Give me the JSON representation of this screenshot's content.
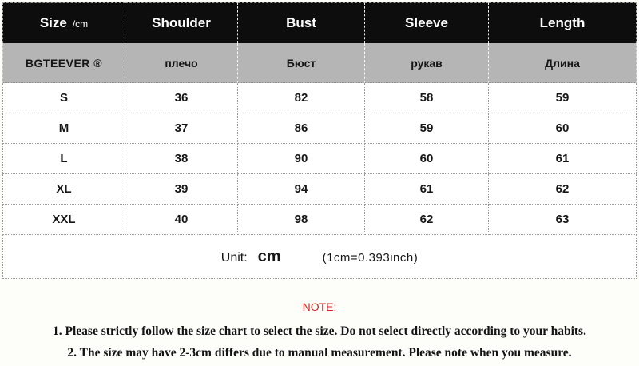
{
  "table": {
    "header": {
      "size_label": "Size",
      "size_unit": "/cm",
      "columns": [
        "Shoulder",
        "Bust",
        "Sleeve",
        "Length"
      ]
    },
    "subheader": {
      "brand": "BGTEEVER ®",
      "translations": [
        "плечо",
        "Бюст",
        "рукав",
        "Длина"
      ]
    },
    "rows": [
      [
        "S",
        "36",
        "82",
        "58",
        "59"
      ],
      [
        "M",
        "37",
        "86",
        "59",
        "60"
      ],
      [
        "L",
        "38",
        "90",
        "60",
        "61"
      ],
      [
        "XL",
        "39",
        "94",
        "61",
        "62"
      ],
      [
        "XXL",
        "40",
        "98",
        "62",
        "63"
      ]
    ],
    "unit": {
      "label": "Unit:",
      "value": "cm",
      "conversion": "(1cm=0.393inch)"
    }
  },
  "note": {
    "title": "NOTE:",
    "lines": [
      "1. Please strictly follow the size chart to select the size. Do not select directly according to your habits.",
      "2. The size may have 2-3cm differs due to manual measurement. Please note when you measure."
    ]
  },
  "colors": {
    "header_bg": "#0d0d0d",
    "subheader_bg": "#b5b5b5",
    "note_red": "#d91f1f"
  },
  "chart_data": {
    "type": "table",
    "title": "Size /cm",
    "unit": "cm",
    "conversion": "1cm=0.393inch",
    "columns": [
      "Size",
      "Shoulder (плечо)",
      "Bust (Бюст)",
      "Sleeve (рукав)",
      "Length (Длина)"
    ],
    "rows": [
      [
        "S",
        36,
        82,
        58,
        59
      ],
      [
        "M",
        37,
        86,
        59,
        60
      ],
      [
        "L",
        38,
        90,
        60,
        61
      ],
      [
        "XL",
        39,
        94,
        61,
        62
      ],
      [
        "XXL",
        40,
        98,
        62,
        63
      ]
    ]
  }
}
